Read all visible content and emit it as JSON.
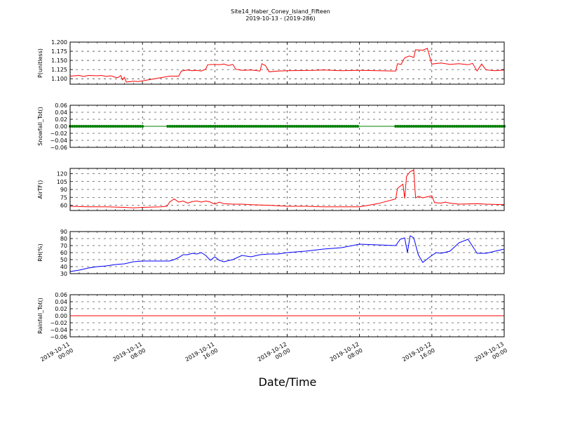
{
  "chart_data": {
    "type": "line",
    "title": "Site14_Haber_Coney_Island_Fifteen",
    "subtitle": "2019-10-13 - (2019-286)",
    "xlabel": "Date/Time",
    "x_ticks": [
      {
        "l1": "2019-10-11",
        "l2": "00:00",
        "h": 0
      },
      {
        "l1": "2019-10-11",
        "l2": "08:00",
        "h": 8
      },
      {
        "l1": "2019-10-11",
        "l2": "16:00",
        "h": 16
      },
      {
        "l1": "2019-10-12",
        "l2": "00:00",
        "h": 24
      },
      {
        "l1": "2019-10-12",
        "l2": "08:00",
        "h": 32
      },
      {
        "l1": "2019-10-12",
        "l2": "16:00",
        "h": 40
      },
      {
        "l1": "2019-10-13",
        "l2": "00:00",
        "h": 48
      }
    ],
    "xlim_hours": [
      0,
      48
    ],
    "grid": true,
    "panels": [
      {
        "ylabel": "P(unitless)",
        "color": "#ff0000",
        "ylim": [
          1.085,
          1.2
        ],
        "yticks": [
          1.1,
          1.125,
          1.15,
          1.175,
          1.2
        ],
        "ytick_labels": [
          "1.100",
          "1.125",
          "1.150",
          "1.175",
          "1.200"
        ],
        "points": [
          [
            0,
            1.107
          ],
          [
            1,
            1.109
          ],
          [
            1.5,
            1.106
          ],
          [
            2,
            1.109
          ],
          [
            3,
            1.108
          ],
          [
            3.5,
            1.109
          ],
          [
            4,
            1.106
          ],
          [
            4.5,
            1.108
          ],
          [
            5,
            1.104
          ],
          [
            5.3,
            1.103
          ],
          [
            5.6,
            1.109
          ],
          [
            5.8,
            1.097
          ],
          [
            6,
            1.104
          ],
          [
            6.2,
            1.091
          ],
          [
            7,
            1.093
          ],
          [
            7.5,
            1.092
          ],
          [
            8,
            1.094
          ],
          [
            11,
            1.107
          ],
          [
            12,
            1.107
          ],
          [
            12.3,
            1.121
          ],
          [
            13,
            1.124
          ],
          [
            13.5,
            1.122
          ],
          [
            14,
            1.123
          ],
          [
            14.5,
            1.121
          ],
          [
            15,
            1.126
          ],
          [
            15.2,
            1.138
          ],
          [
            16,
            1.139
          ],
          [
            16.5,
            1.138
          ],
          [
            17,
            1.14
          ],
          [
            17.5,
            1.136
          ],
          [
            18,
            1.139
          ],
          [
            18.3,
            1.126
          ],
          [
            19,
            1.123
          ],
          [
            20,
            1.124
          ],
          [
            21,
            1.121
          ],
          [
            21.2,
            1.141
          ],
          [
            21.6,
            1.136
          ],
          [
            22,
            1.119
          ],
          [
            23,
            1.121
          ],
          [
            24,
            1.122
          ],
          [
            27,
            1.123
          ],
          [
            28,
            1.124
          ],
          [
            30,
            1.122
          ],
          [
            32,
            1.123
          ],
          [
            36,
            1.121
          ],
          [
            36.2,
            1.141
          ],
          [
            36.6,
            1.139
          ],
          [
            37,
            1.157
          ],
          [
            37.5,
            1.162
          ],
          [
            38,
            1.158
          ],
          [
            38.2,
            1.179
          ],
          [
            39,
            1.178
          ],
          [
            39.5,
            1.183
          ],
          [
            40,
            1.14
          ],
          [
            41,
            1.143
          ],
          [
            42,
            1.139
          ],
          [
            43,
            1.141
          ],
          [
            44,
            1.138
          ],
          [
            44.5,
            1.142
          ],
          [
            45,
            1.121
          ],
          [
            45.5,
            1.14
          ],
          [
            46,
            1.124
          ],
          [
            47,
            1.122
          ],
          [
            48,
            1.124
          ]
        ]
      },
      {
        "ylabel": "Snowfall_Tot()",
        "color": "#008000",
        "ylim": [
          -0.06,
          0.06
        ],
        "yticks": [
          -0.06,
          -0.04,
          -0.02,
          0,
          0.02,
          0.04,
          0.06
        ],
        "ytick_labels": [
          "−0.06",
          "−0.04",
          "−0.02",
          "0.00",
          "0.02",
          "0.04",
          "0.06"
        ],
        "points": [
          [
            0,
            0
          ],
          [
            48,
            0
          ]
        ],
        "marker_ranges": [
          [
            0,
            8
          ],
          [
            10.8,
            31.8
          ],
          [
            36,
            48
          ]
        ]
      },
      {
        "ylabel": "AirTF()",
        "color": "#ff0000",
        "ylim": [
          50,
          130
        ],
        "yticks": [
          60,
          75,
          90,
          105,
          120
        ],
        "ytick_labels": [
          "60",
          "75",
          "90",
          "105",
          "120"
        ],
        "points": [
          [
            0,
            58
          ],
          [
            2,
            57
          ],
          [
            4,
            57
          ],
          [
            6,
            56
          ],
          [
            7,
            55
          ],
          [
            8,
            56
          ],
          [
            10,
            57
          ],
          [
            10.7,
            58
          ],
          [
            11,
            66
          ],
          [
            11.5,
            72
          ],
          [
            12,
            66
          ],
          [
            12.5,
            68
          ],
          [
            13,
            64
          ],
          [
            13.5,
            67
          ],
          [
            14,
            68
          ],
          [
            14.5,
            66
          ],
          [
            15,
            68
          ],
          [
            15.5,
            66
          ],
          [
            16,
            62
          ],
          [
            16.5,
            66
          ],
          [
            17,
            63
          ],
          [
            18,
            62
          ],
          [
            19,
            62
          ],
          [
            20,
            61
          ],
          [
            22,
            60
          ],
          [
            24,
            58
          ],
          [
            26,
            58
          ],
          [
            28,
            57
          ],
          [
            30,
            57
          ],
          [
            32,
            57
          ],
          [
            34,
            63
          ],
          [
            36,
            72
          ],
          [
            36.2,
            92
          ],
          [
            36.8,
            100
          ],
          [
            37,
            73
          ],
          [
            37.2,
            115
          ],
          [
            37.6,
            124
          ],
          [
            38,
            127
          ],
          [
            38.2,
            74
          ],
          [
            38.5,
            77
          ],
          [
            39,
            74
          ],
          [
            40,
            78
          ],
          [
            40.3,
            65
          ],
          [
            41,
            64
          ],
          [
            41.5,
            66
          ],
          [
            42,
            64
          ],
          [
            43,
            62
          ],
          [
            45,
            63
          ],
          [
            46,
            62
          ],
          [
            48,
            61
          ]
        ]
      },
      {
        "ylabel": "RH(%)",
        "color": "#0000ff",
        "ylim": [
          30,
          90
        ],
        "yticks": [
          30,
          40,
          50,
          60,
          70,
          80,
          90
        ],
        "ytick_labels": [
          "30",
          "40",
          "50",
          "60",
          "70",
          "80",
          "90"
        ],
        "points": [
          [
            0,
            33
          ],
          [
            1,
            35
          ],
          [
            2,
            38
          ],
          [
            3,
            40
          ],
          [
            4,
            41
          ],
          [
            5,
            43
          ],
          [
            6,
            44
          ],
          [
            7,
            47
          ],
          [
            8,
            48
          ],
          [
            11,
            48
          ],
          [
            11.5,
            50
          ],
          [
            12,
            53
          ],
          [
            12.5,
            57
          ],
          [
            13,
            57
          ],
          [
            13.5,
            59
          ],
          [
            14,
            58
          ],
          [
            14.5,
            60
          ],
          [
            15,
            56
          ],
          [
            15.5,
            49
          ],
          [
            16,
            54
          ],
          [
            16.5,
            49
          ],
          [
            17,
            47
          ],
          [
            18,
            50
          ],
          [
            19,
            56
          ],
          [
            20,
            54
          ],
          [
            21,
            57
          ],
          [
            22,
            58
          ],
          [
            23,
            58
          ],
          [
            24,
            60
          ],
          [
            26,
            62
          ],
          [
            28,
            65
          ],
          [
            30,
            67
          ],
          [
            32,
            72
          ],
          [
            36,
            70
          ],
          [
            36.5,
            79
          ],
          [
            37,
            81
          ],
          [
            37.3,
            60
          ],
          [
            37.6,
            84
          ],
          [
            38,
            81
          ],
          [
            38.5,
            57
          ],
          [
            39,
            46
          ],
          [
            40,
            56
          ],
          [
            40.5,
            60
          ],
          [
            41,
            59
          ],
          [
            42,
            62
          ],
          [
            42.5,
            68
          ],
          [
            43,
            74
          ],
          [
            44,
            79
          ],
          [
            44.5,
            69
          ],
          [
            45,
            59
          ],
          [
            46,
            59
          ],
          [
            48,
            65
          ]
        ]
      },
      {
        "ylabel": "Rainfall_Tot()",
        "color": "#ff0000",
        "ylim": [
          -0.06,
          0.06
        ],
        "yticks": [
          -0.06,
          -0.04,
          -0.02,
          0,
          0.02,
          0.04,
          0.06
        ],
        "ytick_labels": [
          "−0.06",
          "−0.04",
          "−0.02",
          "0.00",
          "0.02",
          "0.04",
          "0.06"
        ],
        "points": [
          [
            0,
            0
          ],
          [
            48,
            0
          ]
        ]
      }
    ]
  }
}
